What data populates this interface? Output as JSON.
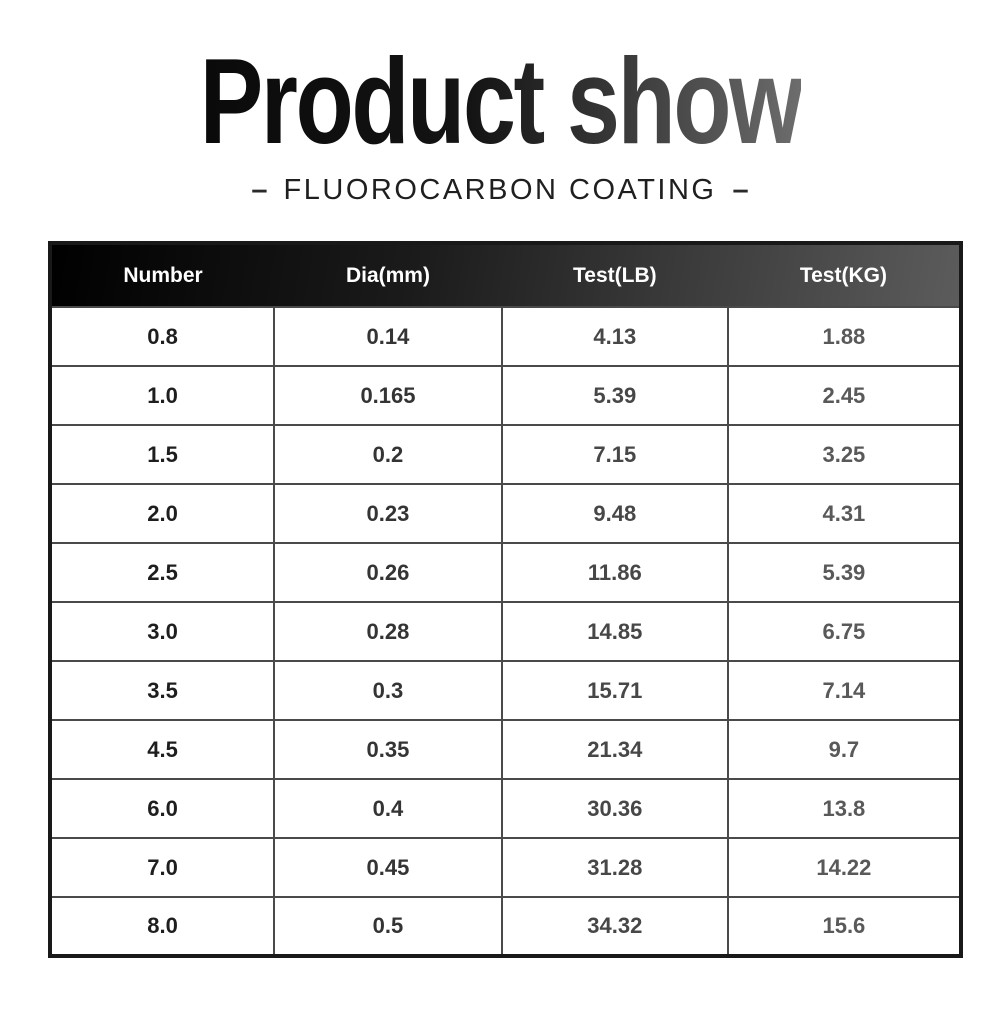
{
  "title": "Product show",
  "subtitle": {
    "dash_left": "–",
    "text": "FLUOROCARBON COATING",
    "dash_right": "–"
  },
  "table": {
    "columns": [
      "Number",
      "Dia(mm)",
      "Test(LB)",
      "Test(KG)"
    ],
    "rows": [
      [
        "0.8",
        "0.14",
        "4.13",
        "1.88"
      ],
      [
        "1.0",
        "0.165",
        "5.39",
        "2.45"
      ],
      [
        "1.5",
        "0.2",
        "7.15",
        "3.25"
      ],
      [
        "2.0",
        "0.23",
        "9.48",
        "4.31"
      ],
      [
        "2.5",
        "0.26",
        "11.86",
        "5.39"
      ],
      [
        "3.0",
        "0.28",
        "14.85",
        "6.75"
      ],
      [
        "3.5",
        "0.3",
        "15.71",
        "7.14"
      ],
      [
        "4.5",
        "0.35",
        "21.34",
        "9.7"
      ],
      [
        "6.0",
        "0.4",
        "30.36",
        "13.8"
      ],
      [
        "7.0",
        "0.45",
        "31.28",
        "14.22"
      ],
      [
        "8.0",
        "0.5",
        "34.32",
        "15.6"
      ]
    ]
  },
  "chart_data": {
    "type": "table",
    "title": "Product show",
    "subtitle": "FLUOROCARBON COATING",
    "columns": [
      "Number",
      "Dia(mm)",
      "Test(LB)",
      "Test(KG)"
    ],
    "rows": [
      [
        0.8,
        0.14,
        4.13,
        1.88
      ],
      [
        1.0,
        0.165,
        5.39,
        2.45
      ],
      [
        1.5,
        0.2,
        7.15,
        3.25
      ],
      [
        2.0,
        0.23,
        9.48,
        4.31
      ],
      [
        2.5,
        0.26,
        11.86,
        5.39
      ],
      [
        3.0,
        0.28,
        14.85,
        6.75
      ],
      [
        3.5,
        0.3,
        15.71,
        7.14
      ],
      [
        4.5,
        0.35,
        21.34,
        9.7
      ],
      [
        6.0,
        0.4,
        30.36,
        13.8
      ],
      [
        7.0,
        0.45,
        31.28,
        14.22
      ],
      [
        8.0,
        0.5,
        34.32,
        15.6
      ]
    ]
  },
  "colors": {
    "title_gradient_start": "#0a0a0a",
    "title_gradient_end": "#6d6d6d",
    "header_gradient_start": "#000000",
    "header_gradient_end": "#5c5c5c",
    "header_text": "#ffffff",
    "outer_border": "#191919",
    "inner_border": "#4a4a4a",
    "cell_text_darkest": "#1e1e1e",
    "cell_text_lightest": "#595959",
    "background": "#ffffff"
  }
}
